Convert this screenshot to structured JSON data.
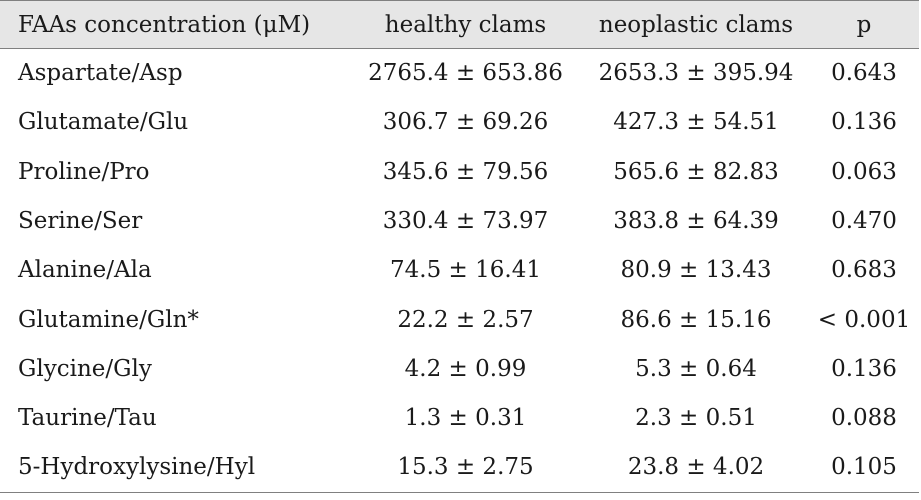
{
  "table": {
    "headers": [
      "FAAs concentration (μM)",
      "healthy clams",
      "neoplastic clams",
      "p"
    ],
    "rows": [
      {
        "name": "Aspartate/Asp",
        "healthy": "2765.4 ± 653.86",
        "neoplastic": "2653.3 ± 395.94",
        "p": "0.643"
      },
      {
        "name": "Glutamate/Glu",
        "healthy": "306.7 ± 69.26",
        "neoplastic": "427.3 ± 54.51",
        "p": "0.136"
      },
      {
        "name": "Proline/Pro",
        "healthy": "345.6 ± 79.56",
        "neoplastic": "565.6 ± 82.83",
        "p": "0.063"
      },
      {
        "name": "Serine/Ser",
        "healthy": "330.4 ± 73.97",
        "neoplastic": "383.8 ± 64.39",
        "p": "0.470"
      },
      {
        "name": "Alanine/Ala",
        "healthy": "74.5 ± 16.41",
        "neoplastic": "80.9 ± 13.43",
        "p": "0.683"
      },
      {
        "name": "Glutamine/Gln*",
        "healthy": "22.2 ± 2.57",
        "neoplastic": "86.6 ± 15.16",
        "p": "< 0.001"
      },
      {
        "name": "Glycine/Gly",
        "healthy": "4.2 ± 0.99",
        "neoplastic": "5.3 ± 0.64",
        "p": "0.136"
      },
      {
        "name": "Taurine/Tau",
        "healthy": "1.3 ± 0.31",
        "neoplastic": "2.3 ± 0.51",
        "p": "0.088"
      },
      {
        "name": "5-Hydroxylysine/Hyl",
        "healthy": "15.3 ± 2.75",
        "neoplastic": "23.8 ± 4.02",
        "p": "0.105"
      }
    ]
  },
  "colors": {
    "header_background": "#e6e6e6",
    "text": "#1a1a1a",
    "rule": "#808080"
  }
}
